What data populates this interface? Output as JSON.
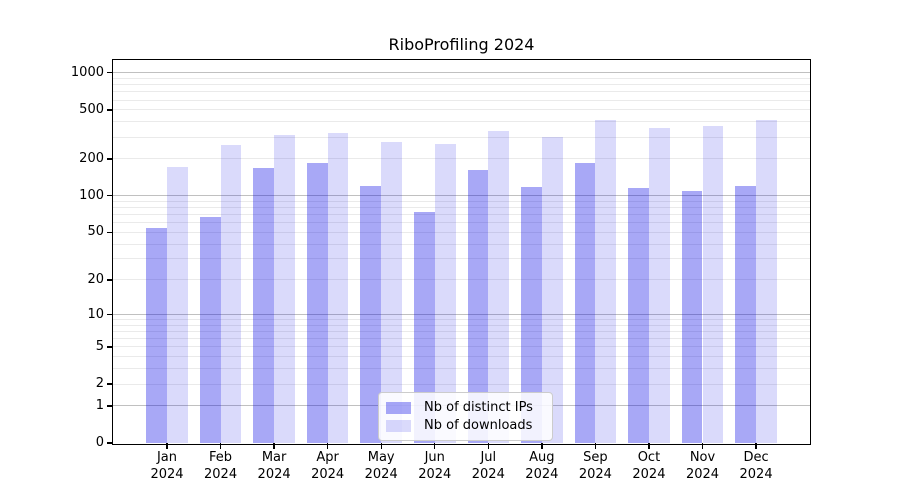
{
  "title": "RiboProfiling 2024",
  "chart_data": {
    "type": "bar",
    "title": "RiboProfiling 2024",
    "xlabel": "",
    "ylabel": "",
    "yscale": "log1p",
    "ylim": [
      0,
      1270
    ],
    "yticks": [
      0,
      1,
      2,
      5,
      10,
      20,
      50,
      100,
      200,
      500,
      1000
    ],
    "grid": "on",
    "legend_position": "lower center inside",
    "categories": [
      "Jan 2024",
      "Feb 2024",
      "Mar 2024",
      "Apr 2024",
      "May 2024",
      "Jun 2024",
      "Jul 2024",
      "Aug 2024",
      "Sep 2024",
      "Oct 2024",
      "Nov 2024",
      "Dec 2024"
    ],
    "series": [
      {
        "name": "Nb of distinct IPs",
        "color": "#0000e6",
        "opacity": 0.34,
        "rendered_color": "#a9a9f6",
        "values": [
          54,
          67,
          168,
          185,
          120,
          74,
          163,
          118,
          184,
          116,
          109,
          121
        ]
      },
      {
        "name": "Nb of downloads",
        "color": "#0000e6",
        "opacity": 0.145,
        "rendered_color": "#dadafb",
        "values": [
          173,
          258,
          315,
          324,
          272,
          265,
          335,
          302,
          413,
          354,
          368,
          413
        ]
      }
    ]
  },
  "colors": {
    "major_grid": "#c0c0c0",
    "minor_grid": "#eaeaea",
    "axis": "#000000",
    "background": "#ffffff"
  }
}
